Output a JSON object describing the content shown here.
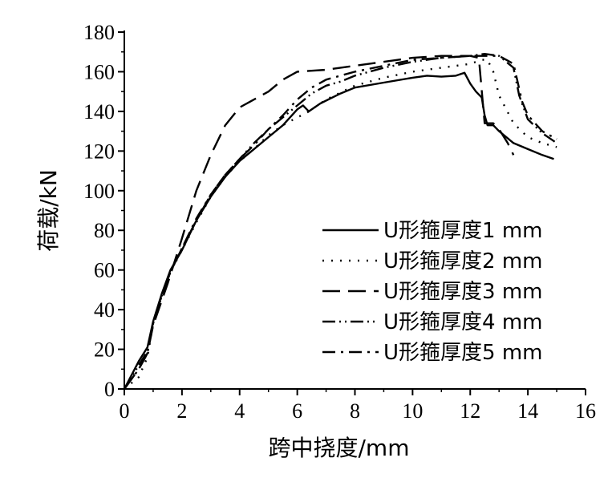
{
  "chart_data": {
    "type": "line",
    "xlabel": "跨中挠度/mm",
    "ylabel": "荷载/kN",
    "xlim": [
      0,
      16
    ],
    "ylim": [
      0,
      180
    ],
    "xticks": [
      0,
      2,
      4,
      6,
      8,
      10,
      12,
      14,
      16
    ],
    "yticks": [
      0,
      20,
      40,
      60,
      80,
      100,
      120,
      140,
      160,
      180
    ],
    "grid": false,
    "legend_position": "center-right",
    "series": [
      {
        "name": "U形箍厚度1 mm",
        "style": "solid",
        "points": [
          [
            0,
            0
          ],
          [
            0.5,
            14
          ],
          [
            0.8,
            21
          ],
          [
            1.0,
            34
          ],
          [
            1.3,
            48
          ],
          [
            1.6,
            60
          ],
          [
            2.0,
            70
          ],
          [
            2.5,
            85
          ],
          [
            3.0,
            97
          ],
          [
            3.5,
            107
          ],
          [
            4.0,
            115
          ],
          [
            4.5,
            121
          ],
          [
            5.0,
            127
          ],
          [
            5.5,
            133
          ],
          [
            6.0,
            141
          ],
          [
            6.2,
            143
          ],
          [
            6.4,
            140
          ],
          [
            6.8,
            144
          ],
          [
            7.5,
            149
          ],
          [
            8.0,
            152
          ],
          [
            9.0,
            154.5
          ],
          [
            10.0,
            157
          ],
          [
            10.5,
            158
          ],
          [
            11.0,
            157.5
          ],
          [
            11.5,
            158
          ],
          [
            11.8,
            159.5
          ],
          [
            12.0,
            154
          ],
          [
            12.2,
            150
          ],
          [
            12.4,
            147
          ],
          [
            12.5,
            138
          ],
          [
            12.6,
            133
          ],
          [
            12.8,
            133
          ],
          [
            13.0,
            130
          ],
          [
            13.5,
            124
          ],
          [
            14.0,
            121
          ],
          [
            14.5,
            118
          ],
          [
            14.9,
            116
          ]
        ]
      },
      {
        "name": "U形箍厚度2 mm",
        "style": "dotted",
        "points": [
          [
            0,
            0
          ],
          [
            0.5,
            6
          ],
          [
            0.8,
            16
          ],
          [
            1.0,
            33
          ],
          [
            1.3,
            47
          ],
          [
            1.6,
            59
          ],
          [
            2.0,
            70
          ],
          [
            2.5,
            84
          ],
          [
            3.0,
            97
          ],
          [
            3.5,
            107
          ],
          [
            4.0,
            115
          ],
          [
            4.5,
            121
          ],
          [
            5.0,
            128
          ],
          [
            5.5,
            133
          ],
          [
            6.0,
            137
          ],
          [
            6.3,
            139
          ],
          [
            7.0,
            146
          ],
          [
            8.0,
            153
          ],
          [
            9.0,
            157
          ],
          [
            10.0,
            160
          ],
          [
            11.0,
            162
          ],
          [
            12.0,
            164
          ],
          [
            12.4,
            166
          ],
          [
            12.6,
            166
          ],
          [
            12.8,
            160
          ],
          [
            13.0,
            148
          ],
          [
            13.5,
            134
          ],
          [
            14.0,
            127
          ],
          [
            14.5,
            124
          ],
          [
            15.0,
            122
          ]
        ]
      },
      {
        "name": "U形箍厚度3 mm",
        "style": "dashed",
        "points": [
          [
            0,
            0
          ],
          [
            0.5,
            10
          ],
          [
            0.8,
            18
          ],
          [
            1.0,
            32
          ],
          [
            1.5,
            53
          ],
          [
            2.0,
            76
          ],
          [
            2.5,
            100
          ],
          [
            3.0,
            118
          ],
          [
            3.5,
            133
          ],
          [
            4.0,
            142
          ],
          [
            4.5,
            146
          ],
          [
            5.0,
            150
          ],
          [
            5.5,
            156
          ],
          [
            6.0,
            160
          ],
          [
            7.0,
            161
          ],
          [
            8.0,
            163
          ],
          [
            9.0,
            165
          ],
          [
            10.0,
            167
          ],
          [
            11.0,
            168
          ],
          [
            12.0,
            168
          ],
          [
            12.3,
            167
          ],
          [
            12.5,
            134
          ],
          [
            12.8,
            134
          ],
          [
            13.0,
            131
          ],
          [
            13.3,
            124
          ],
          [
            13.5,
            118
          ]
        ]
      },
      {
        "name": "U形箍厚度4 mm",
        "style": "dash-dot-dot",
        "points": [
          [
            0,
            0
          ],
          [
            0.5,
            12
          ],
          [
            0.8,
            19
          ],
          [
            1.0,
            33
          ],
          [
            1.3,
            47
          ],
          [
            1.6,
            59
          ],
          [
            2.0,
            71
          ],
          [
            2.5,
            85
          ],
          [
            3.0,
            98
          ],
          [
            3.5,
            108
          ],
          [
            4.0,
            116
          ],
          [
            4.5,
            124
          ],
          [
            5.0,
            131
          ],
          [
            5.5,
            137
          ],
          [
            6.0,
            143
          ],
          [
            6.5,
            149
          ],
          [
            7.0,
            153
          ],
          [
            7.5,
            155
          ],
          [
            8.0,
            158
          ],
          [
            9.0,
            162
          ],
          [
            10.0,
            165
          ],
          [
            11.0,
            167
          ],
          [
            12.0,
            168
          ],
          [
            12.5,
            169
          ],
          [
            13.0,
            168
          ],
          [
            13.5,
            162
          ],
          [
            13.7,
            148
          ],
          [
            14.0,
            136
          ],
          [
            14.5,
            129
          ],
          [
            15.0,
            124
          ]
        ]
      },
      {
        "name": "U形箍厚度5 mm",
        "style": "dash-dot",
        "points": [
          [
            0,
            0
          ],
          [
            0.5,
            10
          ],
          [
            0.8,
            18
          ],
          [
            1.0,
            33
          ],
          [
            1.3,
            47
          ],
          [
            1.6,
            59
          ],
          [
            2.0,
            71
          ],
          [
            2.5,
            86
          ],
          [
            3.0,
            98
          ],
          [
            3.5,
            108
          ],
          [
            4.0,
            116
          ],
          [
            4.5,
            123
          ],
          [
            5.0,
            131
          ],
          [
            5.5,
            138
          ],
          [
            6.0,
            146
          ],
          [
            6.5,
            152
          ],
          [
            7.0,
            156
          ],
          [
            8.0,
            160
          ],
          [
            9.0,
            163
          ],
          [
            10.0,
            166
          ],
          [
            11.0,
            167
          ],
          [
            12.0,
            168
          ],
          [
            12.5,
            168
          ],
          [
            13.0,
            168
          ],
          [
            13.5,
            164
          ],
          [
            13.8,
            145
          ],
          [
            14.0,
            138
          ],
          [
            14.5,
            130
          ],
          [
            15.0,
            126
          ]
        ]
      }
    ]
  }
}
